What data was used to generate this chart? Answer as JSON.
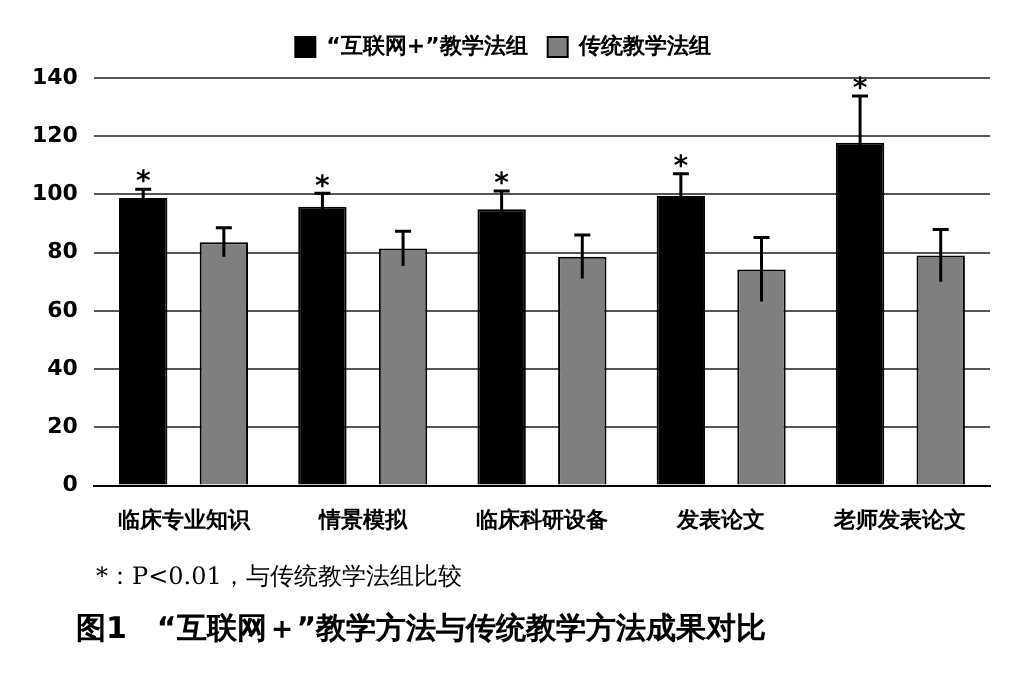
{
  "chart_data": {
    "type": "bar",
    "title": "图1　“互联网＋”教学方法与传统教学方法成果对比",
    "categories": [
      "临床专业知识",
      "情景模拟",
      "临床科研设备",
      "发表论文",
      "老师发表论文"
    ],
    "series": [
      {
        "name": "“互联网+”教学法组",
        "color": "#000000",
        "values": [
          98.8,
          95.8,
          94.9,
          99.5,
          117.8
        ],
        "errors": [
          3,
          4.6,
          6.3,
          7.6,
          16
        ]
      },
      {
        "name": "传统教学法组",
        "color": "#7f7f7f",
        "values": [
          83.6,
          81.4,
          78.6,
          74.2,
          79
        ],
        "errors": [
          5,
          6,
          7.5,
          11,
          9
        ]
      }
    ],
    "ylim": [
      0,
      140
    ],
    "yticks": [
      0,
      20,
      40,
      60,
      80,
      100,
      120,
      140
    ],
    "grid": "y",
    "legend": "top",
    "annotations": [
      "*",
      "*",
      "*",
      "*",
      "*",
      "*：P<0.01，与传统教学法组比较"
    ]
  }
}
